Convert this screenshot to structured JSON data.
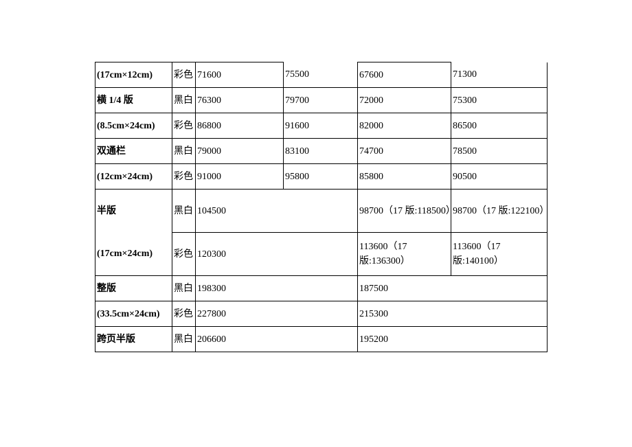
{
  "table": {
    "colors": {
      "text": "#000000",
      "border": "#000000",
      "background": "#ffffff"
    },
    "font": {
      "family": "SimSun",
      "size_pt": 10.5,
      "bold_size_col": true
    },
    "rows": [
      {
        "size": "(17cm×12cm)",
        "color": "彩色",
        "v": [
          "71600",
          "75500",
          "67600",
          "71300"
        ],
        "borders": {
          "c3_top": false,
          "c5_top": false
        }
      },
      {
        "size": "横 1/4 版",
        "color": "黑白",
        "v": [
          "76300",
          "79700",
          "72000",
          "75300"
        ]
      },
      {
        "size": "(8.5cm×24cm)",
        "color": "彩色",
        "v": [
          "86800",
          "91600",
          "82000",
          "86500"
        ]
      },
      {
        "size": "双通栏",
        "color": "黑白",
        "v": [
          "79000",
          "83100",
          "74700",
          "78500"
        ]
      },
      {
        "size": "(12cm×24cm)",
        "color": "彩色",
        "v": [
          "91000",
          "95800",
          "85800",
          "90500"
        ]
      },
      {
        "rowspan_size": 2,
        "size": "半版",
        "size2": "(17cm×24cm)",
        "color": "黑白",
        "v": [
          "104500",
          "",
          "98700（17 版:118500）",
          "98700（17 版:122100）"
        ],
        "merge_23": true,
        "tall": true
      },
      {
        "color": "彩色",
        "v": [
          "120300",
          "",
          "113600（17 版:136300）",
          "113600（17 版:140100）"
        ],
        "merge_23": true,
        "tall": true
      },
      {
        "size": "整版",
        "color": "黑白",
        "v": [
          "198300",
          "",
          "187500",
          ""
        ],
        "merge_23": true,
        "merge_45": true
      },
      {
        "size": "(33.5cm×24cm)",
        "color": "彩色",
        "v": [
          "227800",
          "",
          "215300",
          ""
        ],
        "merge_23": true,
        "merge_45": true
      },
      {
        "size": "跨页半版",
        "color": "黑白",
        "v": [
          "206600",
          "",
          "195200",
          ""
        ],
        "merge_23": true,
        "merge_45": true
      }
    ]
  }
}
